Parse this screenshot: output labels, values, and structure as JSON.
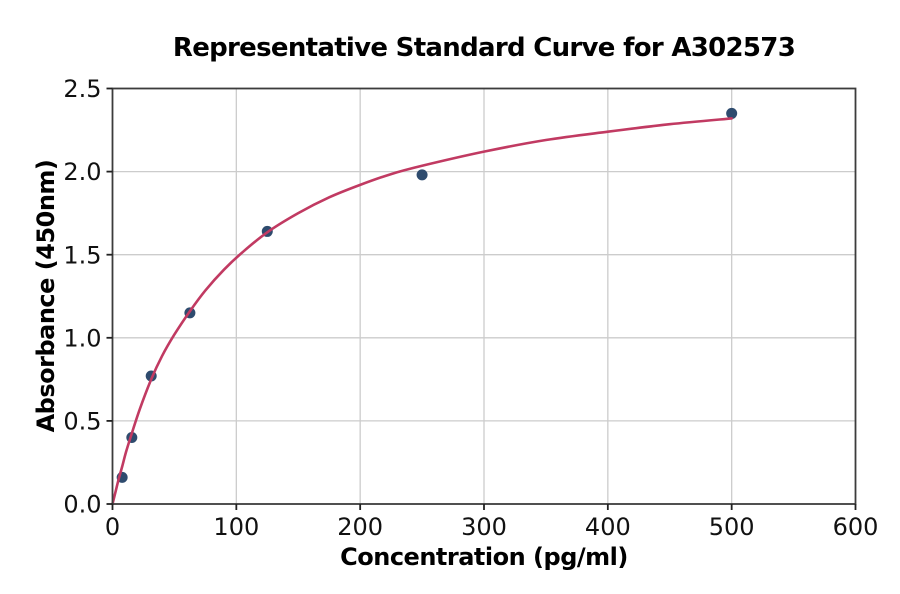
{
  "chart_data": {
    "type": "scatter",
    "title": "Representative Standard Curve for A302573",
    "xlabel": "Concentration (pg/ml)",
    "ylabel": "Absorbance (450nm)",
    "xlim": [
      0,
      600
    ],
    "ylim": [
      0,
      2.5
    ],
    "x_tick_values": [
      0,
      100,
      200,
      300,
      400,
      500,
      600
    ],
    "x_tick_labels": [
      "0",
      "100",
      "200",
      "300",
      "400",
      "500",
      "600"
    ],
    "y_tick_values": [
      0,
      0.5,
      1.0,
      1.5,
      2.0,
      2.5
    ],
    "y_tick_labels": [
      "0.0",
      "0.5",
      "1.0",
      "1.5",
      "2.0",
      "2.5"
    ],
    "grid": true,
    "legend": false,
    "points": {
      "x": [
        7.8,
        15.6,
        31.25,
        62.5,
        125,
        250,
        500
      ],
      "y": [
        0.16,
        0.4,
        0.77,
        1.15,
        1.64,
        1.98,
        2.35
      ]
    },
    "fit_curve": {
      "model": "four-parameter-logistic",
      "points": [
        [
          0,
          0.0
        ],
        [
          2,
          0.06
        ],
        [
          5,
          0.15
        ],
        [
          7.8,
          0.225
        ],
        [
          11,
          0.315
        ],
        [
          15.6,
          0.425
        ],
        [
          22,
          0.57
        ],
        [
          31.25,
          0.75
        ],
        [
          40,
          0.89
        ],
        [
          50,
          1.02
        ],
        [
          62.5,
          1.16
        ],
        [
          75,
          1.285
        ],
        [
          90,
          1.41
        ],
        [
          105,
          1.515
        ],
        [
          125,
          1.635
        ],
        [
          150,
          1.75
        ],
        [
          175,
          1.845
        ],
        [
          200,
          1.92
        ],
        [
          225,
          1.985
        ],
        [
          250,
          2.035
        ],
        [
          300,
          2.12
        ],
        [
          350,
          2.19
        ],
        [
          400,
          2.24
        ],
        [
          450,
          2.285
        ],
        [
          500,
          2.32
        ]
      ]
    },
    "colors": {
      "curve": "#c13a62",
      "marker": "#2e4b6e",
      "grid": "#cccccc",
      "spine": "#3c3c3c",
      "tick": "#222222",
      "text": "#000000",
      "background": "#ffffff"
    }
  }
}
